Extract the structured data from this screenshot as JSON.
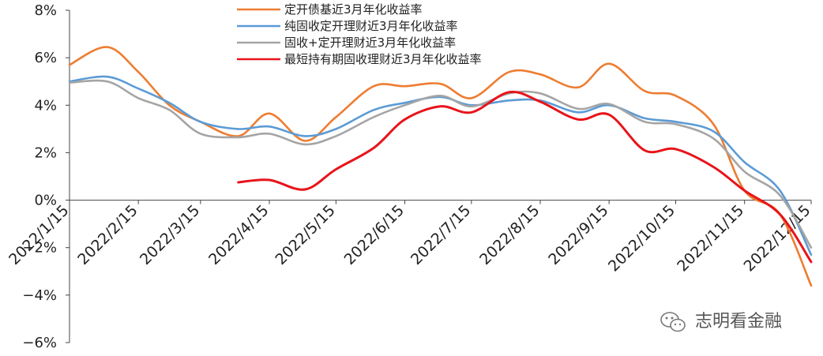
{
  "chart_data": {
    "type": "line",
    "title": "",
    "xlabel": "",
    "ylabel": "",
    "ylim": [
      -6,
      8
    ],
    "yticks": [
      -6,
      -4,
      -2,
      0,
      2,
      4,
      6,
      8
    ],
    "ytick_labels": [
      "−6%",
      "−4%",
      "−2%",
      "0%",
      "2%",
      "4%",
      "6%",
      "8%"
    ],
    "xlim": [
      "2022/1/15",
      "2022/12/15"
    ],
    "xticks": [
      "2022/1/15",
      "2022/2/15",
      "2022/3/15",
      "2022/4/15",
      "2022/5/15",
      "2022/6/15",
      "2022/7/15",
      "2022/8/15",
      "2022/9/15",
      "2022/10/15",
      "2022/11/15",
      "2022/12/15"
    ],
    "grid": false,
    "legend_position": "top-center",
    "series": [
      {
        "name": "定开债基近3月年化收益率",
        "color": "#ED7D31",
        "points": [
          [
            "2022/1/15",
            5.7
          ],
          [
            "2022/2/1",
            6.45
          ],
          [
            "2022/2/15",
            5.4
          ],
          [
            "2022/3/1",
            4.0
          ],
          [
            "2022/3/15",
            3.3
          ],
          [
            "2022/4/1",
            2.7
          ],
          [
            "2022/4/15",
            3.65
          ],
          [
            "2022/5/1",
            2.5
          ],
          [
            "2022/5/15",
            3.5
          ],
          [
            "2022/6/1",
            4.8
          ],
          [
            "2022/6/15",
            4.8
          ],
          [
            "2022/7/1",
            4.9
          ],
          [
            "2022/7/15",
            4.3
          ],
          [
            "2022/8/1",
            5.4
          ],
          [
            "2022/8/15",
            5.3
          ],
          [
            "2022/9/1",
            4.75
          ],
          [
            "2022/9/15",
            5.75
          ],
          [
            "2022/10/1",
            4.6
          ],
          [
            "2022/10/15",
            4.4
          ],
          [
            "2022/11/1",
            3.2
          ],
          [
            "2022/11/15",
            0.4
          ],
          [
            "2022/12/1",
            -0.6
          ],
          [
            "2022/12/15",
            -3.6
          ]
        ]
      },
      {
        "name": "纯固收定开理财近3月年化收益率",
        "color": "#5B9BD5",
        "points": [
          [
            "2022/1/15",
            5.0
          ],
          [
            "2022/2/1",
            5.2
          ],
          [
            "2022/2/15",
            4.7
          ],
          [
            "2022/3/1",
            4.1
          ],
          [
            "2022/3/15",
            3.3
          ],
          [
            "2022/4/1",
            3.0
          ],
          [
            "2022/4/15",
            3.1
          ],
          [
            "2022/5/1",
            2.7
          ],
          [
            "2022/5/15",
            3.0
          ],
          [
            "2022/6/1",
            3.8
          ],
          [
            "2022/6/15",
            4.1
          ],
          [
            "2022/7/1",
            4.35
          ],
          [
            "2022/7/15",
            4.0
          ],
          [
            "2022/8/1",
            4.2
          ],
          [
            "2022/8/15",
            4.2
          ],
          [
            "2022/9/1",
            3.7
          ],
          [
            "2022/9/15",
            4.0
          ],
          [
            "2022/10/1",
            3.45
          ],
          [
            "2022/10/15",
            3.3
          ],
          [
            "2022/11/1",
            2.9
          ],
          [
            "2022/11/15",
            1.6
          ],
          [
            "2022/12/1",
            0.4
          ],
          [
            "2022/12/15",
            -2.3
          ]
        ]
      },
      {
        "name": "固收+定开理财近3月年化收益率",
        "color": "#A5A5A5",
        "points": [
          [
            "2022/1/15",
            4.95
          ],
          [
            "2022/2/1",
            5.0
          ],
          [
            "2022/2/15",
            4.3
          ],
          [
            "2022/3/1",
            3.8
          ],
          [
            "2022/3/15",
            2.8
          ],
          [
            "2022/4/1",
            2.65
          ],
          [
            "2022/4/15",
            2.8
          ],
          [
            "2022/5/1",
            2.35
          ],
          [
            "2022/5/15",
            2.7
          ],
          [
            "2022/6/1",
            3.5
          ],
          [
            "2022/6/15",
            4.0
          ],
          [
            "2022/7/1",
            4.4
          ],
          [
            "2022/7/15",
            3.95
          ],
          [
            "2022/8/1",
            4.5
          ],
          [
            "2022/8/15",
            4.5
          ],
          [
            "2022/9/1",
            3.85
          ],
          [
            "2022/9/15",
            4.05
          ],
          [
            "2022/10/1",
            3.3
          ],
          [
            "2022/10/15",
            3.2
          ],
          [
            "2022/11/1",
            2.6
          ],
          [
            "2022/11/15",
            1.2
          ],
          [
            "2022/12/1",
            0.2
          ],
          [
            "2022/12/15",
            -2.0
          ]
        ]
      },
      {
        "name": "最短持有期固收理财近3月年化收益率",
        "color": "#E8141A",
        "points": [
          [
            "2022/4/1",
            0.75
          ],
          [
            "2022/4/15",
            0.85
          ],
          [
            "2022/5/1",
            0.45
          ],
          [
            "2022/5/15",
            1.3
          ],
          [
            "2022/6/1",
            2.2
          ],
          [
            "2022/6/15",
            3.4
          ],
          [
            "2022/7/1",
            3.95
          ],
          [
            "2022/7/15",
            3.7
          ],
          [
            "2022/8/1",
            4.55
          ],
          [
            "2022/8/15",
            4.15
          ],
          [
            "2022/9/1",
            3.4
          ],
          [
            "2022/9/15",
            3.6
          ],
          [
            "2022/10/1",
            2.1
          ],
          [
            "2022/10/15",
            2.15
          ],
          [
            "2022/11/1",
            1.4
          ],
          [
            "2022/11/15",
            0.4
          ],
          [
            "2022/12/1",
            -0.6
          ],
          [
            "2022/12/15",
            -2.6
          ]
        ]
      }
    ]
  },
  "watermark": {
    "text": "志明看金融",
    "icon": "wechat-icon"
  }
}
